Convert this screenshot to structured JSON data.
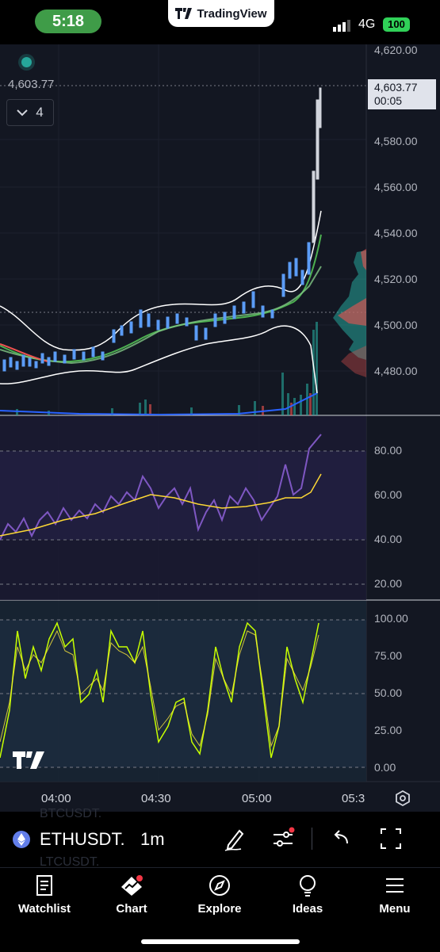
{
  "status_bar": {
    "time": "5:18",
    "app": "TradingView",
    "network": "4G",
    "battery": "100"
  },
  "chart": {
    "last_price": "4,603.77",
    "countdown": "00:05",
    "indicator_count": "4",
    "price_axis": [
      "4,620.00",
      "4,580.00",
      "4,560.00",
      "4,540.00",
      "4,520.00",
      "4,500.00",
      "4,480.00"
    ],
    "rsi_axis": [
      "80.00",
      "60.00",
      "40.00",
      "20.00"
    ],
    "stoch_axis": [
      "100.00",
      "75.00",
      "50.00",
      "25.00",
      "0.00"
    ],
    "time_axis": [
      "04:00",
      "04:30",
      "05:00",
      "05:3"
    ],
    "colors": {
      "background": "#131722",
      "up": "#5b9cf6",
      "down": "#5b9cf6",
      "rsi": "#7e57c2",
      "rsi_ma": "#fdd835",
      "stoch_k": "#c6ff00",
      "bands": "#ffffff"
    }
  },
  "symbol_bar": {
    "symbol": "ETHUSDT.",
    "interval": "1m",
    "ghost_above": "BTCUSDT.",
    "ghost_below": "LTCUSDT."
  },
  "nav": {
    "watchlist": "Watchlist",
    "chart": "Chart",
    "explore": "Explore",
    "ideas": "Ideas",
    "menu": "Menu"
  }
}
